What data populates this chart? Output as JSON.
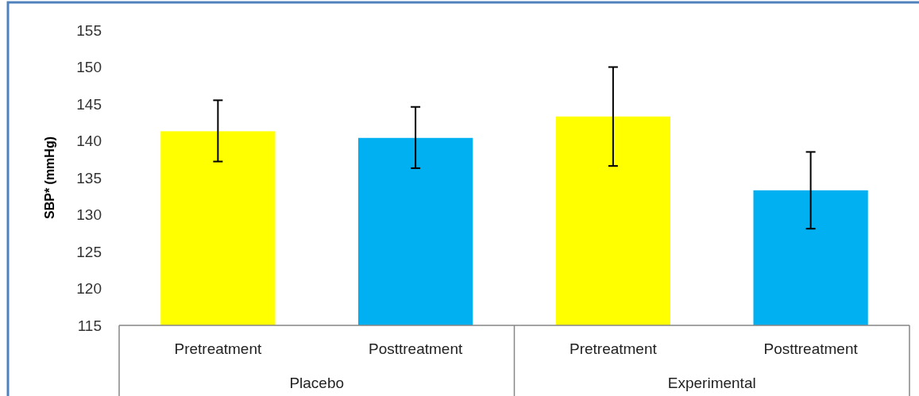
{
  "chart_data": {
    "type": "bar",
    "ylabel": "SBP* (mmHg)",
    "categories": [
      "Pretreatment",
      "Posttreatment",
      "Pretreatment",
      "Posttreatment"
    ],
    "values": [
      141.3,
      140.4,
      143.3,
      133.3
    ],
    "colors": [
      "#ffff00",
      "#00b0f0",
      "#ffff00",
      "#00b0f0"
    ],
    "errors": [
      [
        137.2,
        145.5
      ],
      [
        136.3,
        144.6
      ],
      [
        136.6,
        150.0
      ],
      [
        128.1,
        138.5
      ]
    ],
    "annotations": [
      "Placebo",
      "Experimental"
    ],
    "ylim": [
      115,
      155
    ],
    "yticks": [
      115,
      120,
      125,
      130,
      135,
      140,
      145,
      150,
      155
    ],
    "grid": false
  }
}
